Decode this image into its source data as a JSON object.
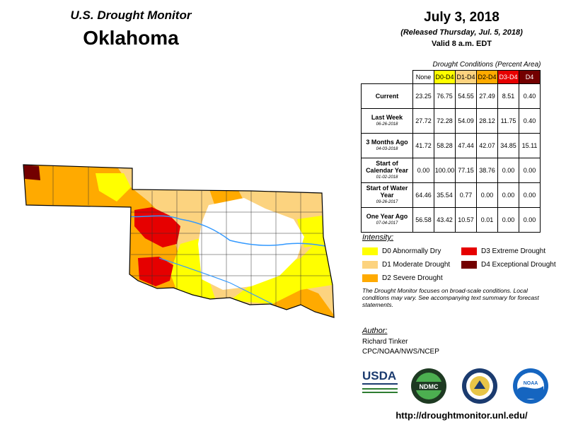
{
  "header": {
    "program": "U.S. Drought Monitor",
    "state": "Oklahoma",
    "date": "July 3, 2018",
    "released": "(Released Thursday, Jul. 5, 2018)",
    "valid": "Valid 8 a.m. EDT"
  },
  "table": {
    "caption": "Drought Conditions (Percent Area)",
    "columns": [
      "None",
      "D0-D4",
      "D1-D4",
      "D2-D4",
      "D3-D4",
      "D4"
    ],
    "column_colors": [
      "#ffffff",
      "#ffff00",
      "#fcd37f",
      "#ffaa00",
      "#e60000",
      "#730000"
    ],
    "rows": [
      {
        "label": "Current",
        "date": "",
        "values": [
          "23.25",
          "76.75",
          "54.55",
          "27.49",
          "8.51",
          "0.40"
        ]
      },
      {
        "label": "Last Week",
        "date": "06-26-2018",
        "values": [
          "27.72",
          "72.28",
          "54.09",
          "28.12",
          "11.75",
          "0.40"
        ]
      },
      {
        "label": "3 Months Ago",
        "date": "04-03-2018",
        "values": [
          "41.72",
          "58.28",
          "47.44",
          "42.07",
          "34.85",
          "15.11"
        ]
      },
      {
        "label": "Start of Calendar Year",
        "date": "01-02-2018",
        "values": [
          "0.00",
          "100.00",
          "77.15",
          "38.76",
          "0.00",
          "0.00"
        ]
      },
      {
        "label": "Start of Water Year",
        "date": "09-26-2017",
        "values": [
          "64.46",
          "35.54",
          "0.77",
          "0.00",
          "0.00",
          "0.00"
        ]
      },
      {
        "label": "One Year Ago",
        "date": "07-04-2017",
        "values": [
          "56.58",
          "43.42",
          "10.57",
          "0.01",
          "0.00",
          "0.00"
        ]
      }
    ]
  },
  "legend": {
    "title": "Intensity:",
    "items": [
      {
        "label": "D0 Abnormally Dry",
        "color": "#ffff00"
      },
      {
        "label": "D1 Moderate Drought",
        "color": "#fcd37f"
      },
      {
        "label": "D2 Severe Drought",
        "color": "#ffaa00"
      },
      {
        "label": "D3 Extreme Drought",
        "color": "#e60000"
      },
      {
        "label": "D4 Exceptional Drought",
        "color": "#730000"
      }
    ]
  },
  "note": "The Drought Monitor focuses on broad-scale conditions. Local conditions may vary. See accompanying text summary for forecast statements.",
  "author": {
    "title": "Author:",
    "name": "Richard Tinker",
    "org": "CPC/NOAA/NWS/NCEP"
  },
  "logos": {
    "usda": "USDA",
    "ndmc": "NDMC",
    "noaa": "NOAA"
  },
  "url": "http://droughtmonitor.unl.edu/"
}
